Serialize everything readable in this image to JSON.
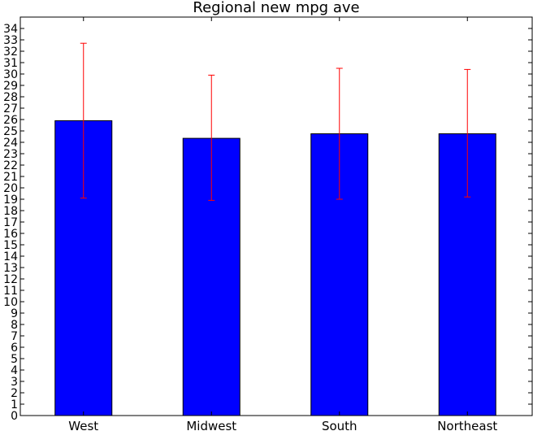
{
  "chart_data": {
    "type": "bar",
    "title": "Regional new mpg ave",
    "xlabel": "",
    "ylabel": "",
    "categories": [
      "West",
      "Midwest",
      "South",
      "Northeast"
    ],
    "values": [
      25.9,
      24.35,
      24.75,
      24.75
    ],
    "error_low": [
      19.1,
      18.9,
      19.0,
      19.2
    ],
    "error_high": [
      32.7,
      29.9,
      30.5,
      30.4
    ],
    "ylim": [
      0,
      35
    ],
    "yticks": [
      0,
      1,
      2,
      3,
      4,
      5,
      6,
      7,
      8,
      9,
      10,
      11,
      12,
      13,
      14,
      15,
      16,
      17,
      18,
      19,
      20,
      21,
      22,
      23,
      24,
      25,
      26,
      27,
      28,
      29,
      30,
      31,
      32,
      33,
      34
    ],
    "bar_color": "#0000ff",
    "error_color": "#ff0000",
    "grid": false,
    "legend": "none"
  }
}
